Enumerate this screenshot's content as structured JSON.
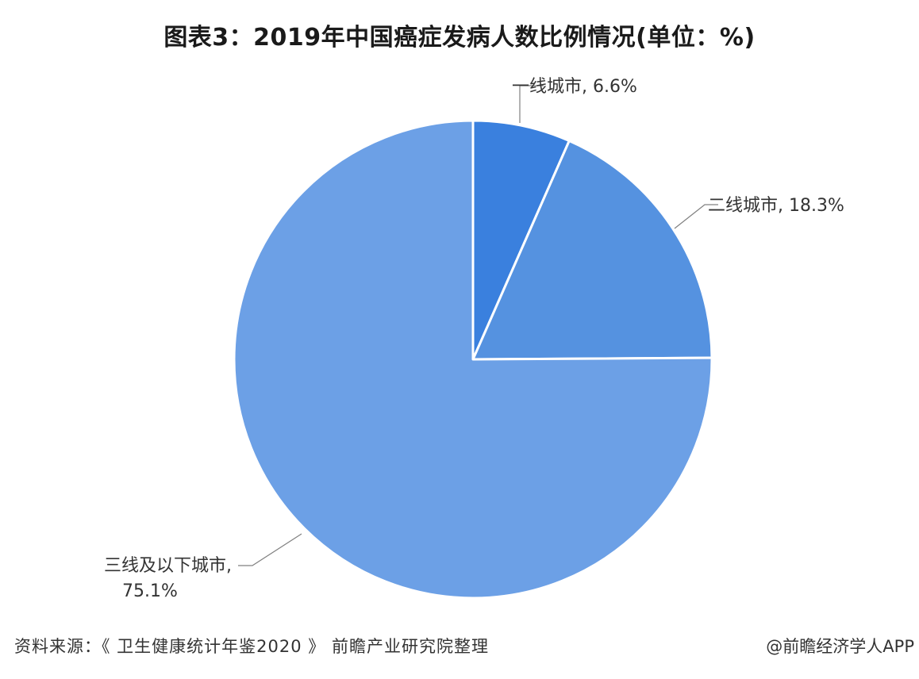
{
  "title": "图表3：2019年中国癌症发病人数比例情况(单位：%)",
  "source_note": "资料来源：《 卫生健康统计年鉴2020 》 前瞻产业研究院整理",
  "credit": "@前瞻经济学人APP",
  "chart_data": {
    "type": "pie",
    "title": "图表3：2019年中国癌症发病人数比例情况(单位：%)",
    "start_angle": "12 o'clock",
    "direction": "clockwise",
    "slices": [
      {
        "label": "一线城市",
        "value": 6.6,
        "display": "一线城市, 6.6%",
        "color": "#3a80de"
      },
      {
        "label": "二线城市",
        "value": 18.3,
        "display": "二线城市, 18.3%",
        "color": "#5592e0"
      },
      {
        "label": "三线及以下城市",
        "value": 75.1,
        "display_line1": "三线及以下城市,",
        "display_line2": "75.1%",
        "color": "#6ca0e6"
      }
    ]
  }
}
